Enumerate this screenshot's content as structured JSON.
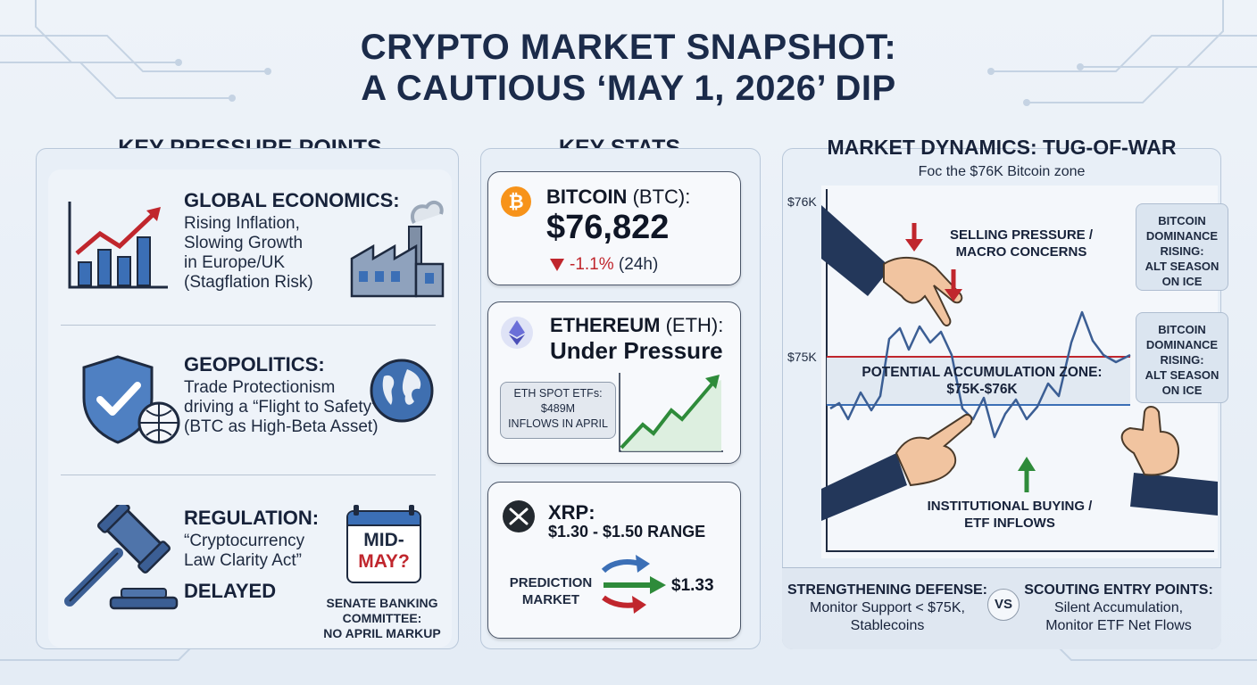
{
  "title": {
    "line1": "CRYPTO MARKET SNAPSHOT:",
    "line2": "A CAUTIOUS ‘MAY 1, 2026’ DIP"
  },
  "pressure": {
    "heading": "KEY PRESSURE POINTS",
    "economics": {
      "title": "GLOBAL ECONOMICS:",
      "lines": [
        "Rising Inflation,",
        "Slowing Growth",
        "in Europe/UK",
        "(Stagflation Risk)"
      ]
    },
    "geopolitics": {
      "title": "GEOPOLITICS:",
      "lines": [
        "Trade Protectionism",
        "driving a “Flight to Safety”",
        "(BTC as High-Beta Asset)"
      ]
    },
    "regulation": {
      "title": "REGULATION:",
      "lines": [
        "“Cryptocurrency",
        "Law Clarity Act”"
      ],
      "status": "DELAYED",
      "calendar_line1": "MID-",
      "calendar_line2": "MAY?",
      "note_lines": [
        "SENATE BANKING",
        "COMMITTEE:",
        "NO APRIL MARKUP"
      ]
    }
  },
  "stats": {
    "heading": "KEY STATS",
    "btc": {
      "name": "BITCOIN",
      "ticker": "(BTC):",
      "price": "$76,822",
      "change": "-1.1%",
      "period": "(24h)"
    },
    "eth": {
      "name": "ETHEREUM",
      "ticker": "(ETH):",
      "status": "Under Pressure",
      "etf_lines": [
        "ETH SPOT ETFs:",
        "$489M",
        "INFLOWS IN APRIL"
      ]
    },
    "xrp": {
      "name": "XRP:",
      "range": "$1.30 - $1.50 RANGE",
      "prediction_lines": [
        "PREDICTION",
        "MARKET"
      ],
      "prediction_value": "$1.33"
    }
  },
  "dynamics": {
    "heading": "MARKET DYNAMICS: TUG-OF-WAR",
    "subtitle": "Foc the $76K Bitcoin zone",
    "axis_top": "$76K",
    "axis_mid": "$75K",
    "selling_lines": [
      "SELLING PRESSURE /",
      "MACRO CONCERNS"
    ],
    "zone_lines": [
      "POTENTIAL ACCUMULATION ZONE:",
      "$75K-$76K"
    ],
    "buying_lines": [
      "INSTITUTIONAL BUYING /",
      "ETF INFLOWS"
    ],
    "side_box_1": [
      "BITCOIN",
      "DOMINANCE",
      "RISING:",
      "ALT SEASON",
      "ON ICE"
    ],
    "side_box_2": [
      "BITCOIN",
      "DOMINANCE",
      "RISING:",
      "ALT SEASON",
      "ON ICE"
    ],
    "defense_title": "STRENGTHENING DEFENSE:",
    "defense_lines": [
      "Monitor Support < $75K,",
      "Stablecoins"
    ],
    "vs": "VS",
    "scouting_title": "SCOUTING ENTRY POINTS:",
    "scouting_lines": [
      "Silent Accumulation,",
      "Monitor ETF Net Flows"
    ]
  },
  "colors": {
    "navy": "#1b2b4a",
    "red": "#c0262d",
    "green": "#2e8b3a",
    "blue": "#3b6fb6",
    "btc_orange": "#f7931a",
    "eth_purple": "#6b6fd8"
  }
}
